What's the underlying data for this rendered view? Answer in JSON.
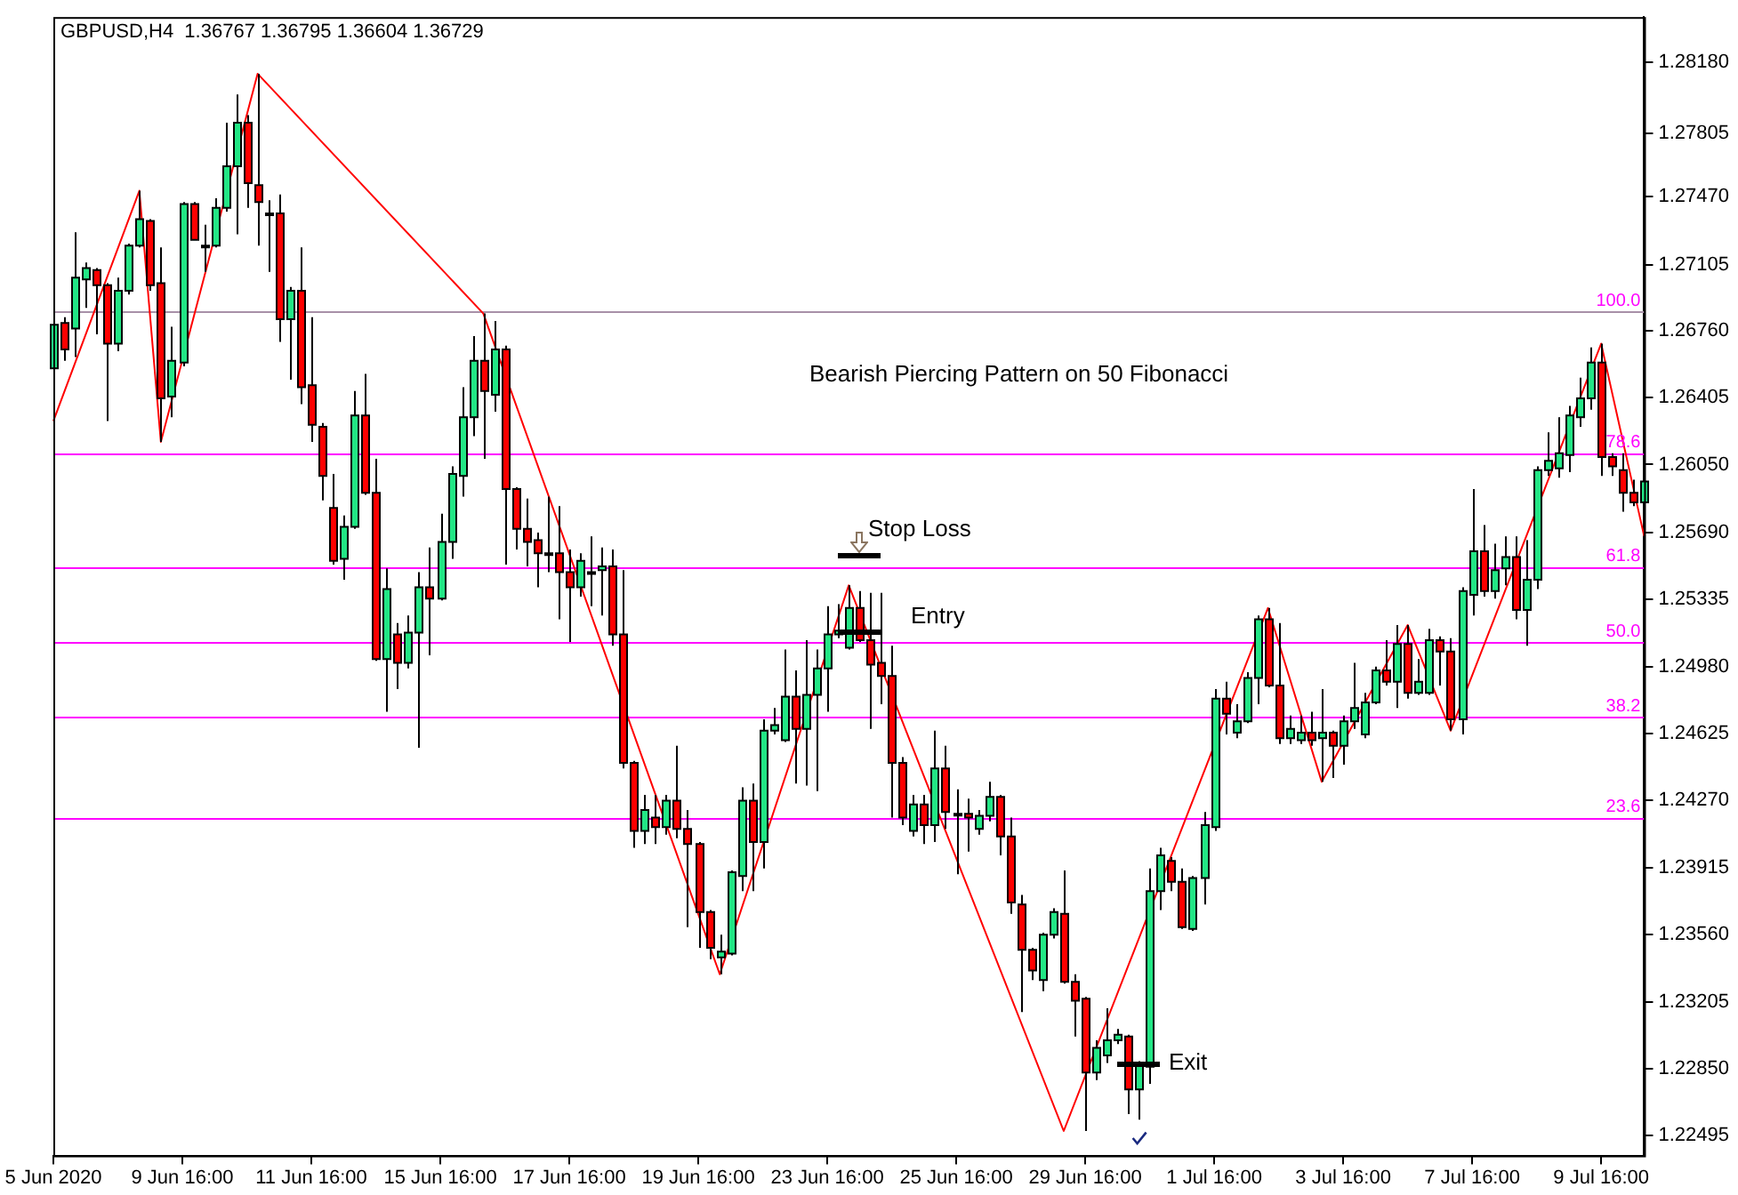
{
  "chart_data": {
    "type": "candlestick",
    "title": "GBPUSD,H4  1.36767 1.36795 1.36604 1.36729",
    "categories": [
      "5 Jun 2020",
      null,
      null,
      null,
      null,
      null,
      null,
      null,
      null,
      null,
      null,
      null,
      "9 Jun 16:00",
      null,
      null,
      null,
      null,
      null,
      null,
      null,
      null,
      null,
      null,
      null,
      "11 Jun 16:00",
      null,
      null,
      null,
      null,
      null,
      null,
      null,
      null,
      null,
      null,
      null,
      "15 Jun 16:00",
      null,
      null,
      null,
      null,
      null,
      null,
      null,
      null,
      null,
      null,
      null,
      "17 Jun 16:00",
      null,
      null,
      null,
      null,
      null,
      null,
      null,
      null,
      null,
      null,
      null,
      "19 Jun 16:00",
      null,
      null,
      null,
      null,
      null,
      null,
      null,
      null,
      null,
      null,
      null,
      "23 Jun 16:00",
      null,
      null,
      null,
      null,
      null,
      null,
      null,
      null,
      null,
      null,
      null,
      "25 Jun 16:00",
      null,
      null,
      null,
      null,
      null,
      null,
      null,
      null,
      null,
      null,
      null,
      "29 Jun 16:00",
      null,
      null,
      null,
      null,
      null,
      null,
      null,
      null,
      null,
      null,
      null,
      "1 Jul 16:00",
      null,
      null,
      null,
      null,
      null,
      null,
      null,
      null,
      null,
      null,
      null,
      "3 Jul 16:00",
      null,
      null,
      null,
      null,
      null,
      null,
      null,
      null,
      null,
      null,
      null,
      "7 Jul 16:00",
      null,
      null,
      null,
      null,
      null,
      null,
      null,
      null,
      null,
      null,
      null,
      "9 Jul 16:00",
      null,
      null,
      null,
      null
    ],
    "ohlc": [
      [
        1.2656,
        1.273,
        1.2651,
        1.2679
      ],
      [
        1.268,
        1.2683,
        1.266,
        1.2666
      ],
      [
        1.2677,
        1.2728,
        1.2662,
        1.2704
      ],
      [
        1.2703,
        1.2712,
        1.2688,
        1.2709
      ],
      [
        1.2708,
        1.2709,
        1.2674,
        1.27
      ],
      [
        1.27,
        1.2701,
        1.2628,
        1.2669
      ],
      [
        1.2669,
        1.2704,
        1.2665,
        1.2697
      ],
      [
        1.2697,
        1.2722,
        1.2695,
        1.2721
      ],
      [
        1.2721,
        1.275,
        1.272,
        1.2735
      ],
      [
        1.2734,
        1.2735,
        1.2697,
        1.27
      ],
      [
        1.2701,
        1.272,
        1.2617,
        1.264
      ],
      [
        1.2641,
        1.2678,
        1.263,
        1.266
      ],
      [
        1.2659,
        1.2744,
        1.2657,
        1.2743
      ],
      [
        1.2743,
        1.2744,
        1.2724,
        1.2724
      ],
      [
        1.272,
        1.2732,
        1.2707,
        1.2721
      ],
      [
        1.2721,
        1.2746,
        1.272,
        1.2741
      ],
      [
        1.2741,
        1.2786,
        1.2739,
        1.2763
      ],
      [
        1.2763,
        1.2801,
        1.2727,
        1.2786
      ],
      [
        1.2786,
        1.279,
        1.2741,
        1.2754
      ],
      [
        1.2753,
        1.2812,
        1.2721,
        1.2744
      ],
      [
        1.2738,
        1.2745,
        1.2707,
        1.2738
      ],
      [
        1.2738,
        1.2748,
        1.267,
        1.2682
      ],
      [
        1.2682,
        1.2699,
        1.265,
        1.2697
      ],
      [
        1.2697,
        1.272,
        1.2637,
        1.2646
      ],
      [
        1.2647,
        1.2683,
        1.2617,
        1.2626
      ],
      [
        1.2625,
        1.2627,
        1.2586,
        1.2599
      ],
      [
        1.2582,
        1.26,
        1.2552,
        1.2554
      ],
      [
        1.2555,
        1.2578,
        1.2544,
        1.2572
      ],
      [
        1.2572,
        1.2644,
        1.2571,
        1.2631
      ],
      [
        1.2631,
        1.2653,
        1.2589,
        1.259
      ],
      [
        1.259,
        1.2608,
        1.2501,
        1.2502
      ],
      [
        1.2502,
        1.255,
        1.2474,
        1.2539
      ],
      [
        1.2515,
        1.2521,
        1.2486,
        1.25
      ],
      [
        1.25,
        1.2525,
        1.2497,
        1.2516
      ],
      [
        1.2516,
        1.2548,
        1.2455,
        1.254
      ],
      [
        1.254,
        1.2561,
        1.2504,
        1.2534
      ],
      [
        1.2534,
        1.2579,
        1.2533,
        1.2564
      ],
      [
        1.2564,
        1.2604,
        1.2555,
        1.26
      ],
      [
        1.2599,
        1.2646,
        1.2588,
        1.263
      ],
      [
        1.263,
        1.2673,
        1.262,
        1.266
      ],
      [
        1.266,
        1.2685,
        1.2608,
        1.2644
      ],
      [
        1.2642,
        1.2681,
        1.2633,
        1.2666
      ],
      [
        1.2666,
        1.2668,
        1.2552,
        1.2592
      ],
      [
        1.2592,
        1.2593,
        1.256,
        1.2571
      ],
      [
        1.2571,
        1.2587,
        1.2551,
        1.2564
      ],
      [
        1.2565,
        1.2569,
        1.254,
        1.2558
      ],
      [
        1.2558,
        1.2588,
        1.2548,
        1.2558
      ],
      [
        1.2558,
        1.2583,
        1.2523,
        1.2548
      ],
      [
        1.2548,
        1.256,
        1.2511,
        1.254
      ],
      [
        1.254,
        1.2558,
        1.2535,
        1.2554
      ],
      [
        1.2548,
        1.2567,
        1.253,
        1.2548
      ],
      [
        1.2549,
        1.2561,
        1.2525,
        1.2551
      ],
      [
        1.2551,
        1.256,
        1.2509,
        1.2515
      ],
      [
        1.2515,
        1.2549,
        1.2444,
        1.2447
      ],
      [
        1.2447,
        1.2448,
        1.2402,
        1.2411
      ],
      [
        1.2411,
        1.243,
        1.2404,
        1.2422
      ],
      [
        1.2418,
        1.243,
        1.2404,
        1.2413
      ],
      [
        1.2413,
        1.243,
        1.2409,
        1.2427
      ],
      [
        1.2427,
        1.2456,
        1.2407,
        1.2412
      ],
      [
        1.2412,
        1.2422,
        1.236,
        1.2404
      ],
      [
        1.2404,
        1.2405,
        1.2349,
        1.2368
      ],
      [
        1.2368,
        1.2369,
        1.2343,
        1.2349
      ],
      [
        1.2344,
        1.2356,
        1.2335,
        1.2347
      ],
      [
        1.2346,
        1.239,
        1.2345,
        1.2389
      ],
      [
        1.2387,
        1.2434,
        1.2379,
        1.2427
      ],
      [
        1.2427,
        1.2436,
        1.2379,
        1.2405
      ],
      [
        1.2405,
        1.247,
        1.2391,
        1.2464
      ],
      [
        1.2464,
        1.2476,
        1.2462,
        1.2467
      ],
      [
        1.2459,
        1.2507,
        1.2458,
        1.2482
      ],
      [
        1.2482,
        1.2496,
        1.2436,
        1.2465
      ],
      [
        1.2465,
        1.2512,
        1.2435,
        1.2483
      ],
      [
        1.2483,
        1.2507,
        1.2432,
        1.2497
      ],
      [
        1.2497,
        1.253,
        1.2474,
        1.2515
      ],
      [
        1.2515,
        1.2531,
        1.2513,
        1.2517
      ],
      [
        1.2508,
        1.2541,
        1.2507,
        1.2529
      ],
      [
        1.2529,
        1.2538,
        1.2511,
        1.2512
      ],
      [
        1.2512,
        1.2537,
        1.2465,
        1.2499
      ],
      [
        1.25,
        1.2537,
        1.2478,
        1.2493
      ],
      [
        1.2493,
        1.2509,
        1.2418,
        1.2447
      ],
      [
        1.2447,
        1.245,
        1.2414,
        1.2418
      ],
      [
        1.2411,
        1.243,
        1.2408,
        1.2425
      ],
      [
        1.2425,
        1.243,
        1.2404,
        1.2414
      ],
      [
        1.2414,
        1.2464,
        1.2405,
        1.2444
      ],
      [
        1.2444,
        1.2456,
        1.2412,
        1.2421
      ],
      [
        1.242,
        1.2433,
        1.2388,
        1.242
      ],
      [
        1.242,
        1.2428,
        1.24,
        1.2418
      ],
      [
        1.2412,
        1.2422,
        1.2409,
        1.2419
      ],
      [
        1.2419,
        1.2437,
        1.2416,
        1.2429
      ],
      [
        1.2429,
        1.243,
        1.2398,
        1.2408
      ],
      [
        1.2408,
        1.2418,
        1.2367,
        1.2373
      ],
      [
        1.2372,
        1.2377,
        1.2315,
        1.2348
      ],
      [
        1.2348,
        1.2349,
        1.2332,
        1.2337
      ],
      [
        1.2332,
        1.2357,
        1.2326,
        1.2356
      ],
      [
        1.2356,
        1.237,
        1.2354,
        1.2368
      ],
      [
        1.2367,
        1.239,
        1.233,
        1.2331
      ],
      [
        1.2331,
        1.2335,
        1.2302,
        1.2321
      ],
      [
        1.2322,
        1.2323,
        1.2252,
        1.2283
      ],
      [
        1.2283,
        1.23,
        1.2279,
        1.2296
      ],
      [
        1.2292,
        1.2317,
        1.2288,
        1.23
      ],
      [
        1.23,
        1.2306,
        1.2298,
        1.2303
      ],
      [
        1.2302,
        1.2303,
        1.2261,
        1.2274
      ],
      [
        1.2274,
        1.2289,
        1.2258,
        1.2288
      ],
      [
        1.2286,
        1.2391,
        1.2277,
        1.2379
      ],
      [
        1.2379,
        1.2402,
        1.2369,
        1.2398
      ],
      [
        1.2395,
        1.2397,
        1.2379,
        1.2384
      ],
      [
        1.2384,
        1.2391,
        1.2359,
        1.236
      ],
      [
        1.2359,
        1.2387,
        1.2358,
        1.2386
      ],
      [
        1.2386,
        1.2421,
        1.2372,
        1.2414
      ],
      [
        1.2413,
        1.2486,
        1.2411,
        1.2481
      ],
      [
        1.2481,
        1.249,
        1.2462,
        1.2473
      ],
      [
        1.2463,
        1.2478,
        1.246,
        1.2469
      ],
      [
        1.2469,
        1.2495,
        1.2468,
        1.2492
      ],
      [
        1.2492,
        1.2525,
        1.2478,
        1.2523
      ],
      [
        1.2523,
        1.2529,
        1.2487,
        1.2488
      ],
      [
        1.2488,
        1.2521,
        1.2457,
        1.246
      ],
      [
        1.246,
        1.2472,
        1.2457,
        1.2465
      ],
      [
        1.2459,
        1.2472,
        1.2457,
        1.2463
      ],
      [
        1.2463,
        1.2474,
        1.2456,
        1.2459
      ],
      [
        1.246,
        1.2486,
        1.2437,
        1.2463
      ],
      [
        1.2463,
        1.2464,
        1.2439,
        1.2456
      ],
      [
        1.2456,
        1.2472,
        1.2446,
        1.2469
      ],
      [
        1.2469,
        1.25,
        1.2465,
        1.2476
      ],
      [
        1.2462,
        1.2484,
        1.246,
        1.2479
      ],
      [
        1.2479,
        1.2498,
        1.2478,
        1.2496
      ],
      [
        1.2496,
        1.2512,
        1.2488,
        1.249
      ],
      [
        1.249,
        1.252,
        1.2476,
        1.251
      ],
      [
        1.251,
        1.252,
        1.2481,
        1.2484
      ],
      [
        1.2484,
        1.2502,
        1.2483,
        1.249
      ],
      [
        1.2484,
        1.2518,
        1.2483,
        1.2512
      ],
      [
        1.2512,
        1.2514,
        1.2488,
        1.2506
      ],
      [
        1.2506,
        1.2513,
        1.2464,
        1.247
      ],
      [
        1.247,
        1.254,
        1.2462,
        1.2538
      ],
      [
        1.2536,
        1.2592,
        1.2525,
        1.2559
      ],
      [
        1.2559,
        1.2573,
        1.2535,
        1.2538
      ],
      [
        1.2538,
        1.2563,
        1.2534,
        1.2549
      ],
      [
        1.255,
        1.2567,
        1.2541,
        1.2556
      ],
      [
        1.2556,
        1.2567,
        1.2523,
        1.2528
      ],
      [
        1.2528,
        1.2565,
        1.2509,
        1.2544
      ],
      [
        1.2544,
        1.2604,
        1.2539,
        1.2602
      ],
      [
        1.2602,
        1.2622,
        1.2599,
        1.2607
      ],
      [
        1.2603,
        1.263,
        1.2598,
        1.2611
      ],
      [
        1.261,
        1.2636,
        1.2601,
        1.2631
      ],
      [
        1.263,
        1.2651,
        1.2625,
        1.264
      ],
      [
        1.264,
        1.2667,
        1.2634,
        1.2659
      ],
      [
        1.2659,
        1.2669,
        1.2599,
        1.2609
      ],
      [
        1.2609,
        1.2611,
        1.2599,
        1.2604
      ],
      [
        1.2602,
        1.2611,
        1.258,
        1.259
      ],
      [
        1.259,
        1.2597,
        1.2583,
        1.2585
      ],
      [
        1.2585,
        1.2597,
        1.2567,
        1.2596
      ]
    ],
    "series": [
      {
        "type": "line",
        "color": "#ff0000",
        "values": [
          1.2628,
          null,
          null,
          null,
          null,
          null,
          null,
          null,
          1.275,
          null,
          1.2617,
          null,
          null,
          null,
          null,
          null,
          null,
          null,
          null,
          1.2812,
          null,
          null,
          null,
          null,
          null,
          null,
          null,
          null,
          null,
          null,
          null,
          null,
          null,
          null,
          null,
          null,
          null,
          null,
          null,
          null,
          1.2685,
          null,
          null,
          null,
          null,
          null,
          null,
          null,
          null,
          null,
          null,
          null,
          null,
          null,
          null,
          null,
          null,
          null,
          null,
          null,
          null,
          null,
          1.2335,
          null,
          null,
          null,
          null,
          null,
          null,
          null,
          null,
          null,
          null,
          null,
          1.2541,
          null,
          null,
          null,
          null,
          null,
          null,
          null,
          null,
          null,
          null,
          null,
          null,
          null,
          null,
          null,
          null,
          null,
          null,
          null,
          1.2252,
          null,
          null,
          null,
          null,
          null,
          null,
          null,
          null,
          null,
          null,
          null,
          null,
          null,
          null,
          null,
          null,
          null,
          null,
          1.2529,
          null,
          null,
          null,
          null,
          1.2437,
          null,
          null,
          null,
          null,
          null,
          null,
          null,
          1.252,
          null,
          null,
          null,
          1.2464,
          null,
          null,
          null,
          null,
          null,
          null,
          null,
          null,
          null,
          null,
          null,
          null,
          null,
          1.2669,
          null,
          null,
          null,
          1.2567
        ]
      }
    ],
    "ylim": [
      1.2239,
      1.2842
    ],
    "yticks": [
      1.22495,
      {
        "value": 1.2285,
        "label": "1.22850"
      },
      1.23205,
      {
        "value": 1.2356,
        "label": "1.23560"
      },
      1.23915,
      {
        "value": 1.2427,
        "label": "1.24270"
      },
      1.24625,
      {
        "value": 1.2498,
        "label": "1.24980"
      },
      1.25335,
      {
        "value": 1.2569,
        "label": "1.25690"
      },
      {
        "value": 1.2605,
        "label": "1.26050"
      },
      1.26405,
      {
        "value": 1.2676,
        "label": "1.26760"
      },
      1.27105,
      {
        "value": 1.2747,
        "label": "1.27470"
      },
      1.27805,
      {
        "value": 1.2818,
        "label": "1.28180"
      }
    ],
    "ref_lines": [
      {
        "axis": "y",
        "value": 1.2686,
        "color": "#a890a8"
      },
      {
        "axis": "y",
        "value": 1.2611,
        "color": "#ff00ff"
      },
      {
        "axis": "y",
        "value": 1.2551,
        "color": "#ff00ff"
      },
      {
        "axis": "y",
        "value": 1.2511,
        "color": "#ff00ff"
      },
      {
        "axis": "y",
        "value": 1.2471,
        "color": "#ff00ff"
      },
      {
        "axis": "y",
        "value": 1.2418,
        "color": "#ff00ff"
      }
    ],
    "annotations": [
      "Bearish Piercing Pattern on 50 Fibonacci",
      "Stop Loss",
      "Entry",
      "Exit",
      {
        "text": "100.0",
        "y": 1.2686
      },
      {
        "text": "78.6",
        "y": 1.2611
      },
      {
        "text": "61.8",
        "y": 1.2551
      },
      {
        "text": "50.0",
        "y": 1.2511
      },
      {
        "text": "38.2",
        "y": 1.2471
      },
      {
        "text": "23.6",
        "y": 1.2418
      }
    ]
  }
}
